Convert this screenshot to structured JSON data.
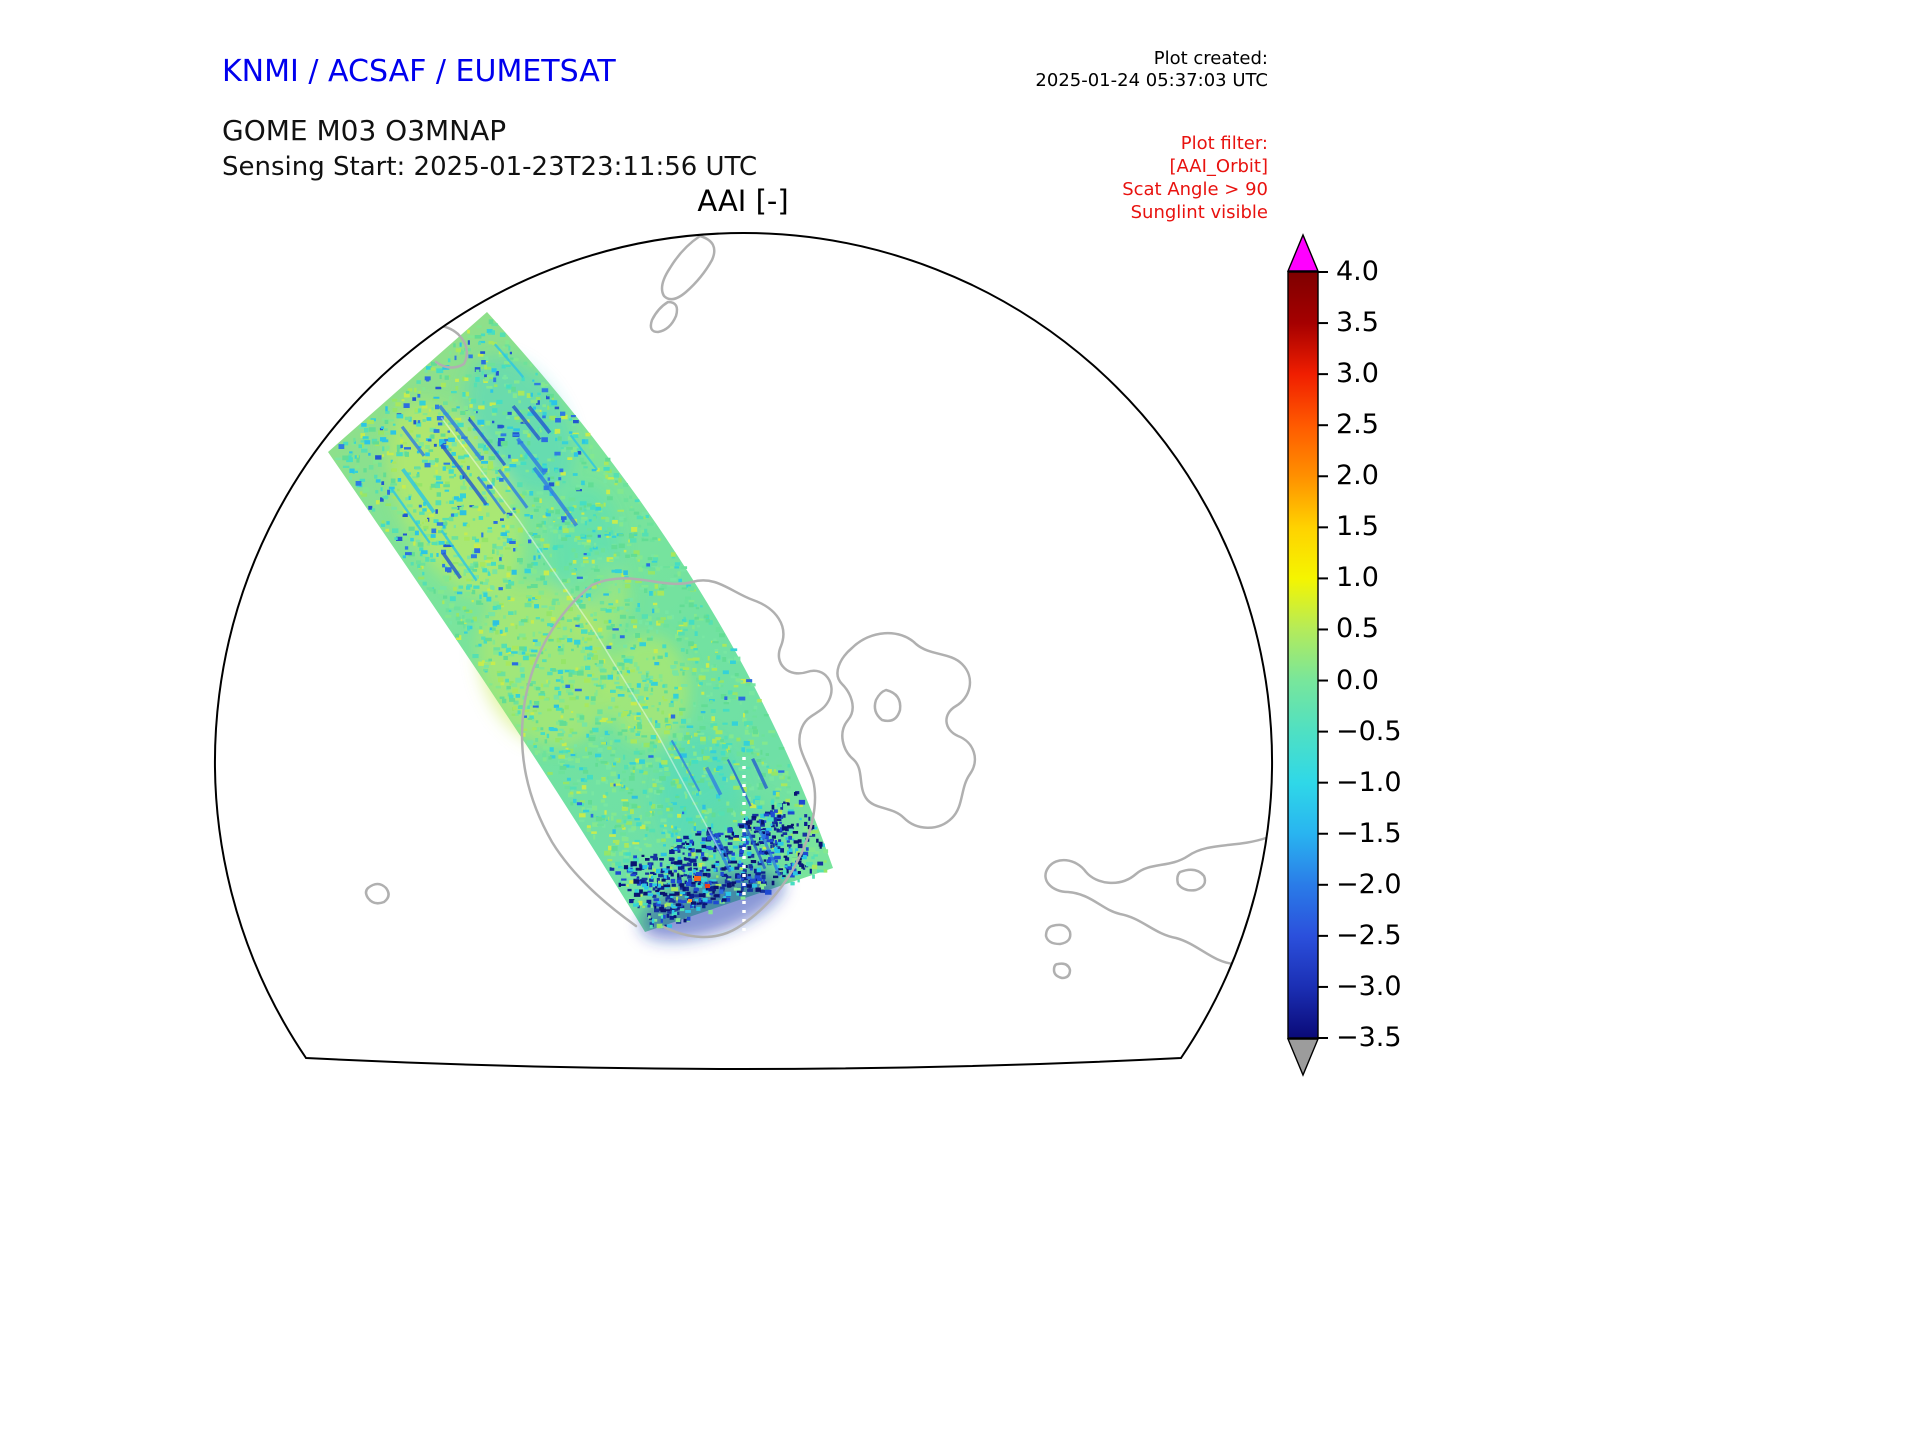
{
  "header": {
    "agency_title": "KNMI / ACSAF / EUMETSAT",
    "product_title": "GOME M03 O3MNAP",
    "sensing_start": "Sensing Start: 2025-01-23T23:11:56 UTC",
    "plot_created_label": "Plot created:",
    "plot_created_value": "2025-01-24 05:37:03 UTC"
  },
  "plot_filter": {
    "line1": "Plot filter:",
    "line2": "[AAI_Orbit]",
    "line3": "Scat Angle > 90",
    "line4": "Sunglint visible"
  },
  "map": {
    "title": "AAI [-]",
    "coastline_color": "#b0b0b0"
  },
  "colorbar": {
    "tick_labels": [
      "4.0",
      "3.5",
      "3.0",
      "2.5",
      "2.0",
      "1.5",
      "1.0",
      "0.5",
      "0.0",
      "−0.5",
      "−1.0",
      "−1.5",
      "−2.0",
      "−2.5",
      "−3.0",
      "−3.5"
    ],
    "over_color": "#ff00ff",
    "under_color": "#9c9c9c"
  },
  "chart_data": {
    "type": "heatmap",
    "title": "AAI [-]",
    "product": "GOME M03 O3MNAP",
    "sensing_start": "2025-01-23T23:11:56 UTC",
    "plot_created": "2025-01-24 05:37:03 UTC",
    "plot_filters": [
      "[AAI_Orbit]",
      "Scat Angle > 90",
      "Sunglint visible"
    ],
    "colorbar": {
      "orientation": "vertical",
      "range": [
        -3.5,
        4.0
      ],
      "tick_step": 0.5,
      "ticks": [
        4.0,
        3.5,
        3.0,
        2.5,
        2.0,
        1.5,
        1.0,
        0.5,
        0.0,
        -0.5,
        -1.0,
        -1.5,
        -2.0,
        -2.5,
        -3.0,
        -3.5
      ],
      "over_color": "magenta",
      "under_color": "gray",
      "colormap_stops": [
        {
          "value": 4.0,
          "color": "#7f0000"
        },
        {
          "value": 3.5,
          "color": "#a50000"
        },
        {
          "value": 3.0,
          "color": "#f01e00"
        },
        {
          "value": 2.5,
          "color": "#ff5a00"
        },
        {
          "value": 2.0,
          "color": "#ff9000"
        },
        {
          "value": 1.5,
          "color": "#ffd200"
        },
        {
          "value": 1.0,
          "color": "#f5f500"
        },
        {
          "value": 0.5,
          "color": "#b4eb5a"
        },
        {
          "value": 0.0,
          "color": "#78e69b"
        },
        {
          "value": -0.5,
          "color": "#4fe0c3"
        },
        {
          "value": -1.0,
          "color": "#2fd8e8"
        },
        {
          "value": -1.5,
          "color": "#29b4f0"
        },
        {
          "value": -2.0,
          "color": "#2a7ce8"
        },
        {
          "value": -2.5,
          "color": "#2b50dc"
        },
        {
          "value": -3.0,
          "color": "#1b2fb4"
        },
        {
          "value": -3.5,
          "color": "#0a0a78"
        }
      ]
    },
    "map": {
      "projection": "polar view, dome-shaped map boundary (south polar region)",
      "features": "gray coastlines of Antarctica and nearby islands, white ocean/land background",
      "swath": {
        "description": "single satellite orbit swath running diagonally from upper-left edge of the dome down to the lower middle near the coast",
        "dominant_aai_range": [
          -1.0,
          1.0
        ],
        "notes": "mostly green/teal (≈ 0 to −0.5) with yellow-green patches (≈ 0.5 to 1.0), blue streaks (≈ −1.5 to −2.5) in the upper part, a dense dark-blue speckled zone (≈ −2.5 to −3.5) at the southern end, a few orange/red pixels (≈ 2 to 3), and a white dotted missing-data scan line near the swath end"
      }
    }
  }
}
